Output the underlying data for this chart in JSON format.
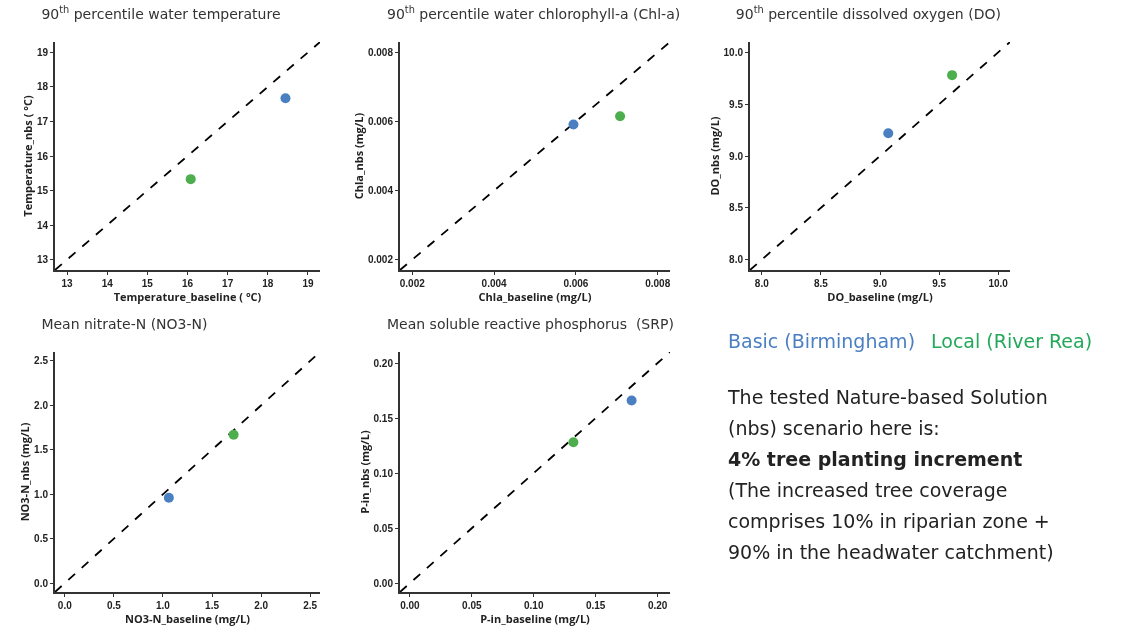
{
  "chart_data": [
    {
      "type": "scatter",
      "title": "90$^{th}$ percentile water temperature",
      "xlabel": "Temperature_baseline ( °C)",
      "ylabel": "Temperature_nbs ( °C)",
      "marker": "circle",
      "xlim": [
        12.7,
        19.3
      ],
      "ylim": [
        12.7,
        19.3
      ],
      "xticks": [
        13,
        14,
        15,
        16,
        17,
        18,
        19
      ],
      "yticks": [
        13,
        14,
        15,
        16,
        17,
        18,
        19
      ],
      "series": [
        {
          "color": "#4a7fc1",
          "x": [
            18.44
          ],
          "values": [
            17.67
          ]
        },
        {
          "color": "#4cae4c",
          "x": [
            16.08
          ],
          "values": [
            15.33
          ]
        },
        {
          "type": "line",
          "marker": "none",
          "line_style": "dashed",
          "color": "#000000",
          "x": [
            12.7,
            19.3
          ],
          "values": [
            12.7,
            19.3
          ]
        }
      ]
    },
    {
      "type": "scatter",
      "title": "90$^{th}$ percentile water chlorophyll-a (Chl-a)",
      "xlabel": "Chla_baseline (mg/L)",
      "ylabel": "Chla_nbs (mg/L)",
      "marker": "circle",
      "xlim": [
        0.0017,
        0.0083
      ],
      "ylim": [
        0.0017,
        0.0083
      ],
      "xticks": [
        0.002,
        0.004,
        0.006,
        0.008
      ],
      "yticks": [
        0.002,
        0.004,
        0.006,
        0.008
      ],
      "series": [
        {
          "color": "#4a7fc1",
          "x": [
            0.00594
          ],
          "values": [
            0.00591
          ]
        },
        {
          "color": "#4cae4c",
          "x": [
            0.00708
          ],
          "values": [
            0.00615
          ]
        },
        {
          "type": "line",
          "marker": "none",
          "line_style": "dashed",
          "color": "#000000",
          "x": [
            0.0017,
            0.0083
          ],
          "values": [
            0.0017,
            0.0083
          ]
        }
      ]
    },
    {
      "type": "scatter",
      "title": "90$^{th}$ percentile dissolved oxygen (DO)",
      "xlabel": "DO_baseline (mg/L)",
      "ylabel": "DO_nbs (mg/L)",
      "marker": "circle",
      "xlim": [
        7.9,
        10.1
      ],
      "ylim": [
        7.9,
        10.1
      ],
      "xticks": [
        {
          "value": 8,
          "label": "8.0"
        },
        8.5,
        {
          "value": 9,
          "label": "9.0"
        },
        9.5,
        {
          "value": 10,
          "label": "10.0"
        }
      ],
      "yticks": [
        {
          "value": 8,
          "label": "8.0"
        },
        8.5,
        {
          "value": 9,
          "label": "9.0"
        },
        9.5,
        {
          "value": 10,
          "label": "10.0"
        }
      ],
      "series": [
        {
          "color": "#4a7fc1",
          "x": [
            9.07
          ],
          "values": [
            9.22
          ]
        },
        {
          "color": "#4cae4c",
          "x": [
            9.61
          ],
          "values": [
            9.78
          ]
        },
        {
          "type": "line",
          "marker": "none",
          "line_style": "dashed",
          "color": "#000000",
          "x": [
            7.9,
            10.1
          ],
          "values": [
            7.9,
            10.1
          ]
        }
      ]
    },
    {
      "type": "scatter",
      "title": "Mean nitrate-N (NO3-N)",
      "xlabel": "NO3-N_baseline (mg/L)",
      "ylabel": "NO3-N_nbs (mg/L)",
      "marker": "circle",
      "xlim": [
        -0.1,
        2.6
      ],
      "ylim": [
        -0.1,
        2.6
      ],
      "xticks": [
        {
          "value": 0,
          "label": "0.0"
        },
        0.5,
        {
          "value": 1,
          "label": "1.0"
        },
        1.5,
        {
          "value": 2,
          "label": "2.0"
        },
        2.5
      ],
      "yticks": [
        {
          "value": 0,
          "label": "0.0"
        },
        0.5,
        {
          "value": 1,
          "label": "1.0"
        },
        1.5,
        {
          "value": 2,
          "label": "2.0"
        },
        2.5
      ],
      "series": [
        {
          "color": "#4a7fc1",
          "x": [
            1.06
          ],
          "values": [
            0.96
          ]
        },
        {
          "color": "#4cae4c",
          "x": [
            1.72
          ],
          "values": [
            1.67
          ]
        },
        {
          "type": "line",
          "marker": "none",
          "line_style": "dashed",
          "color": "#000000",
          "x": [
            -0.1,
            2.6
          ],
          "values": [
            -0.1,
            2.6
          ]
        }
      ]
    },
    {
      "type": "scatter",
      "title": "Mean soluble reactive phosphorus  (SRP)",
      "xlabel": "P-in_baseline (mg/L)",
      "ylabel": "P-in_nbs (mg/L)",
      "marker": "circle",
      "xlim": [
        -0.008,
        0.21
      ],
      "ylim": [
        -0.008,
        0.21
      ],
      "xticks": [
        {
          "value": 0,
          "label": "0.00"
        },
        0.05,
        {
          "value": 0.1,
          "label": "0.10"
        },
        0.15,
        {
          "value": 0.2,
          "label": "0.20"
        }
      ],
      "yticks": [
        {
          "value": 0,
          "label": "0.00"
        },
        0.05,
        {
          "value": 0.1,
          "label": "0.10"
        },
        0.15,
        {
          "value": 0.2,
          "label": "0.20"
        }
      ],
      "series": [
        {
          "color": "#4a7fc1",
          "x": [
            0.179
          ],
          "values": [
            0.166
          ]
        },
        {
          "color": "#4cae4c",
          "x": [
            0.132
          ],
          "values": [
            0.128
          ]
        },
        {
          "type": "line",
          "marker": "none",
          "line_style": "dashed",
          "color": "#000000",
          "x": [
            -0.008,
            0.21
          ],
          "values": [
            -0.008,
            0.21
          ]
        }
      ]
    },
    {
      "type": "other",
      "series": [
        {
          "name": "Basic (Birmingham)",
          "color": "#4a7fc1"
        },
        {
          "name": "Local (River Rea)",
          "color": "#22a85a"
        }
      ],
      "annotations": [
        "The tested Nature-based Solution (nbs) scenario here is:",
        "4% tree planting increment",
        "(The increased tree coverage comprises 10% in riparian zone + 90% in the headwater catchment)"
      ]
    }
  ]
}
